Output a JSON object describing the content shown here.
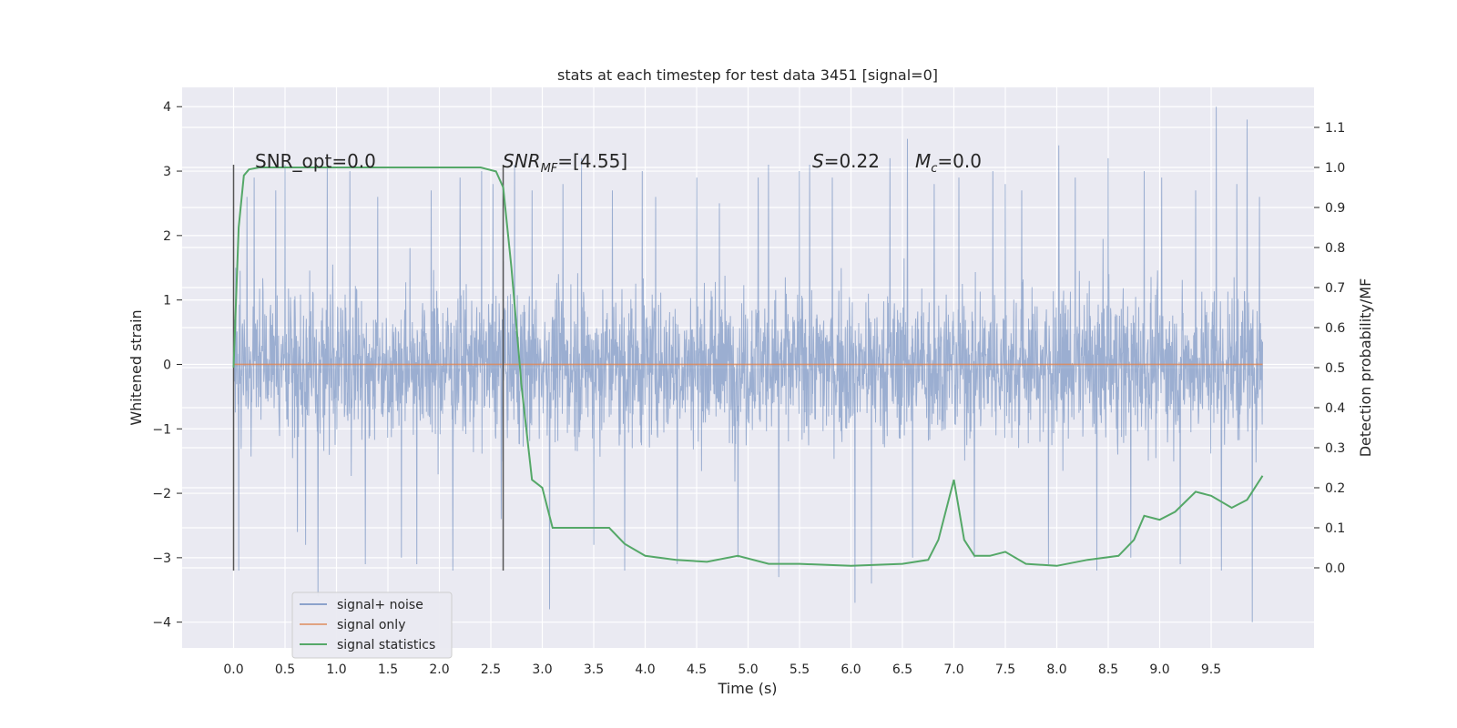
{
  "chart_data": {
    "type": "line",
    "title": "stats at each timestep for test data 3451 [signal=0]",
    "xlabel": "Time (s)",
    "ylabel": "Whitened strain",
    "y2label": "Detection probability/MF",
    "xlim": [
      -0.5,
      10.5
    ],
    "ylim": [
      -4.4,
      4.3
    ],
    "y2lim": [
      -0.2,
      1.2
    ],
    "xticks": [
      0.0,
      0.5,
      1.0,
      1.5,
      2.0,
      2.5,
      3.0,
      3.5,
      4.0,
      4.5,
      5.0,
      5.5,
      6.0,
      6.5,
      7.0,
      7.5,
      8.0,
      8.5,
      9.0,
      9.5
    ],
    "xtick_labels": [
      "0.0",
      "0.5",
      "1.0",
      "1.5",
      "2.0",
      "2.5",
      "3.0",
      "3.5",
      "4.0",
      "4.5",
      "5.0",
      "5.5",
      "6.0",
      "6.5",
      "7.0",
      "7.5",
      "8.0",
      "8.5",
      "9.0",
      "9.5"
    ],
    "yticks": [
      -4,
      -3,
      -2,
      -1,
      0,
      1,
      2,
      3,
      4
    ],
    "ytick_labels": [
      "−4",
      "−3",
      "−2",
      "−1",
      "0",
      "1",
      "2",
      "3",
      "4"
    ],
    "y2ticks": [
      0.0,
      0.1,
      0.2,
      0.3,
      0.4,
      0.5,
      0.6,
      0.7,
      0.8,
      0.9,
      1.0,
      1.1
    ],
    "y2tick_labels": [
      "0.0",
      "0.1",
      "0.2",
      "0.3",
      "0.4",
      "0.5",
      "0.6",
      "0.7",
      "0.8",
      "0.9",
      "1.0",
      "1.1"
    ],
    "grid": true,
    "legend_position": "bottom-left",
    "annotations": {
      "snr_opt": "SNR_opt=0.0",
      "snr_mf_name": "SNR",
      "snr_mf_sub": "MF",
      "snr_mf_value": "=[4.55]",
      "s_name": "S",
      "s_value": "=0.22",
      "mc_name": "M",
      "mc_sub": "c",
      "mc_value": "=0.0"
    },
    "markers": [
      0.0,
      2.62
    ],
    "colors": {
      "background": "#eaeaf2",
      "noise": "#4c72b0",
      "signal": "#dd8452",
      "stat": "#55a868",
      "marker": "#555555"
    },
    "series": [
      {
        "name": "signal+ noise",
        "color": "#4c72b0",
        "x_range": [
          0.0,
          10.0
        ],
        "typical_range": [
          -1.8,
          1.8
        ],
        "peaks": [
          {
            "x": 0.02,
            "y": 1.5
          },
          {
            "x": 0.05,
            "y": -3.2
          },
          {
            "x": 0.13,
            "y": 2.6
          },
          {
            "x": 0.2,
            "y": 2.9
          },
          {
            "x": 0.41,
            "y": 2.7
          },
          {
            "x": 0.5,
            "y": 3.1
          },
          {
            "x": 0.62,
            "y": -2.6
          },
          {
            "x": 0.7,
            "y": -2.8
          },
          {
            "x": 0.82,
            "y": -3.6
          },
          {
            "x": 0.91,
            "y": 3.2
          },
          {
            "x": 1.13,
            "y": 3.0
          },
          {
            "x": 1.28,
            "y": -3.1
          },
          {
            "x": 1.4,
            "y": 2.6
          },
          {
            "x": 1.63,
            "y": -3.0
          },
          {
            "x": 1.78,
            "y": -3.1
          },
          {
            "x": 1.92,
            "y": 2.7
          },
          {
            "x": 2.13,
            "y": -3.2
          },
          {
            "x": 2.2,
            "y": 2.9
          },
          {
            "x": 2.41,
            "y": 3.0
          },
          {
            "x": 2.52,
            "y": 2.8
          },
          {
            "x": 2.6,
            "y": -2.4
          },
          {
            "x": 2.73,
            "y": 3.1
          },
          {
            "x": 2.9,
            "y": 2.7
          },
          {
            "x": 3.07,
            "y": -3.8
          },
          {
            "x": 3.2,
            "y": 2.8
          },
          {
            "x": 3.38,
            "y": 3.2
          },
          {
            "x": 3.5,
            "y": -2.8
          },
          {
            "x": 3.68,
            "y": 2.7
          },
          {
            "x": 3.8,
            "y": -3.2
          },
          {
            "x": 3.97,
            "y": 3.0
          },
          {
            "x": 4.1,
            "y": 2.6
          },
          {
            "x": 4.31,
            "y": -3.1
          },
          {
            "x": 4.5,
            "y": 2.9
          },
          {
            "x": 4.72,
            "y": 2.5
          },
          {
            "x": 4.9,
            "y": -3.0
          },
          {
            "x": 5.1,
            "y": 2.9
          },
          {
            "x": 5.2,
            "y": 3.1
          },
          {
            "x": 5.3,
            "y": -3.3
          },
          {
            "x": 5.5,
            "y": 3.0
          },
          {
            "x": 5.6,
            "y": 3.1
          },
          {
            "x": 5.82,
            "y": 2.9
          },
          {
            "x": 6.04,
            "y": -3.7
          },
          {
            "x": 6.2,
            "y": -3.4
          },
          {
            "x": 6.38,
            "y": 3.2
          },
          {
            "x": 6.55,
            "y": 3.5
          },
          {
            "x": 6.6,
            "y": -3.0
          },
          {
            "x": 6.81,
            "y": 2.8
          },
          {
            "x": 7.05,
            "y": 2.9
          },
          {
            "x": 7.2,
            "y": -3.0
          },
          {
            "x": 7.38,
            "y": 3.0
          },
          {
            "x": 7.5,
            "y": 2.8
          },
          {
            "x": 7.66,
            "y": 2.7
          },
          {
            "x": 7.92,
            "y": -3.1
          },
          {
            "x": 8.02,
            "y": 3.4
          },
          {
            "x": 8.18,
            "y": 2.9
          },
          {
            "x": 8.39,
            "y": -3.2
          },
          {
            "x": 8.5,
            "y": 3.2
          },
          {
            "x": 8.72,
            "y": -3.0
          },
          {
            "x": 8.85,
            "y": 3.0
          },
          {
            "x": 9.02,
            "y": 2.9
          },
          {
            "x": 9.2,
            "y": -3.1
          },
          {
            "x": 9.35,
            "y": 2.7
          },
          {
            "x": 9.55,
            "y": 4.0
          },
          {
            "x": 9.6,
            "y": -3.2
          },
          {
            "x": 9.75,
            "y": 2.8
          },
          {
            "x": 9.85,
            "y": 3.8
          },
          {
            "x": 9.9,
            "y": -4.0
          },
          {
            "x": 9.97,
            "y": 2.6
          }
        ]
      },
      {
        "name": "signal only",
        "color": "#dd8452",
        "x": [
          0.0,
          10.0
        ],
        "y": [
          0.0,
          0.0
        ]
      },
      {
        "name": "signal statistics",
        "color": "#55a868",
        "axis": "right",
        "x": [
          0.0,
          0.05,
          0.1,
          0.15,
          0.25,
          0.5,
          1.0,
          1.5,
          2.0,
          2.4,
          2.55,
          2.62,
          2.7,
          2.8,
          2.9,
          3.0,
          3.1,
          3.2,
          3.3,
          3.5,
          3.65,
          3.8,
          4.0,
          4.3,
          4.6,
          4.9,
          5.2,
          5.5,
          6.0,
          6.5,
          6.75,
          6.85,
          6.95,
          7.0,
          7.1,
          7.2,
          7.35,
          7.5,
          7.7,
          8.0,
          8.3,
          8.6,
          8.75,
          8.85,
          9.0,
          9.15,
          9.35,
          9.5,
          9.7,
          9.85,
          10.0
        ],
        "y": [
          0.5,
          0.85,
          0.98,
          0.995,
          1.0,
          1.0,
          1.0,
          1.0,
          1.0,
          1.0,
          0.99,
          0.95,
          0.75,
          0.45,
          0.22,
          0.2,
          0.1,
          0.1,
          0.1,
          0.1,
          0.1,
          0.06,
          0.03,
          0.02,
          0.015,
          0.03,
          0.01,
          0.01,
          0.005,
          0.01,
          0.02,
          0.07,
          0.17,
          0.22,
          0.07,
          0.03,
          0.03,
          0.04,
          0.01,
          0.005,
          0.02,
          0.03,
          0.07,
          0.13,
          0.12,
          0.14,
          0.19,
          0.18,
          0.15,
          0.17,
          0.23
        ]
      }
    ]
  }
}
